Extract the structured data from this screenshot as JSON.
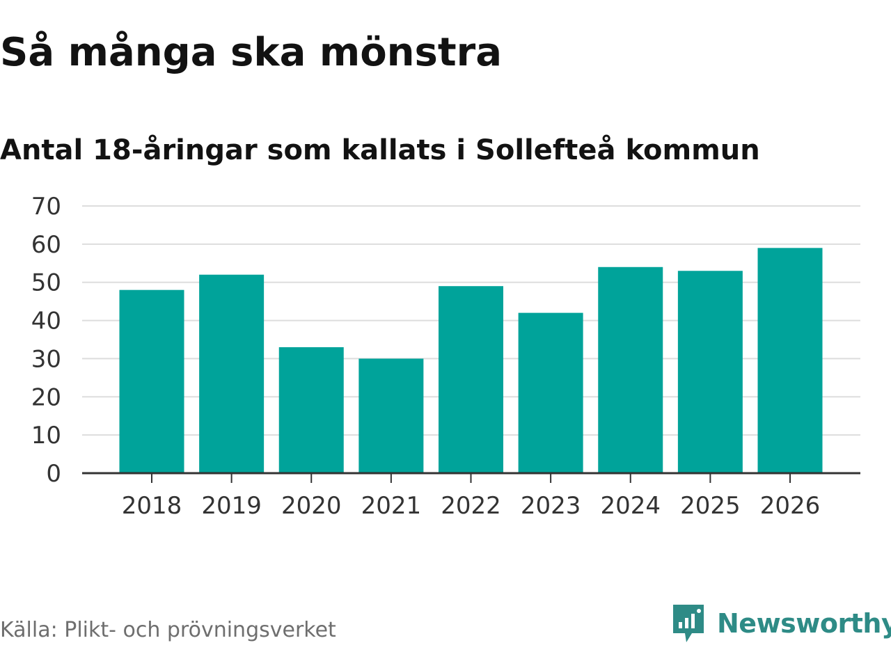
{
  "header": {
    "title": "Så många ska mönstra",
    "subtitle": "Antal 18-åringar som kallats i Sollefteå kommun"
  },
  "footer": {
    "source": "Källa: Plikt- och prövningsverket",
    "brand": "Newsworthy",
    "brand_icon": "bar-chart-speech-bubble-icon"
  },
  "colors": {
    "bar": "#00a39a",
    "grid": "#dddddd",
    "axis": "#333333",
    "brand": "#2e8b86"
  },
  "chart_data": {
    "type": "bar",
    "categories": [
      "2018",
      "2019",
      "2020",
      "2021",
      "2022",
      "2023",
      "2024",
      "2025",
      "2026"
    ],
    "values": [
      48,
      52,
      33,
      30,
      49,
      42,
      54,
      53,
      59
    ],
    "ylim": [
      0,
      70
    ],
    "yticks": [
      0,
      10,
      20,
      30,
      40,
      50,
      60,
      70
    ],
    "title": "Så många ska mönstra",
    "subtitle": "Antal 18-åringar som kallats i Sollefteå kommun",
    "grid": true
  }
}
